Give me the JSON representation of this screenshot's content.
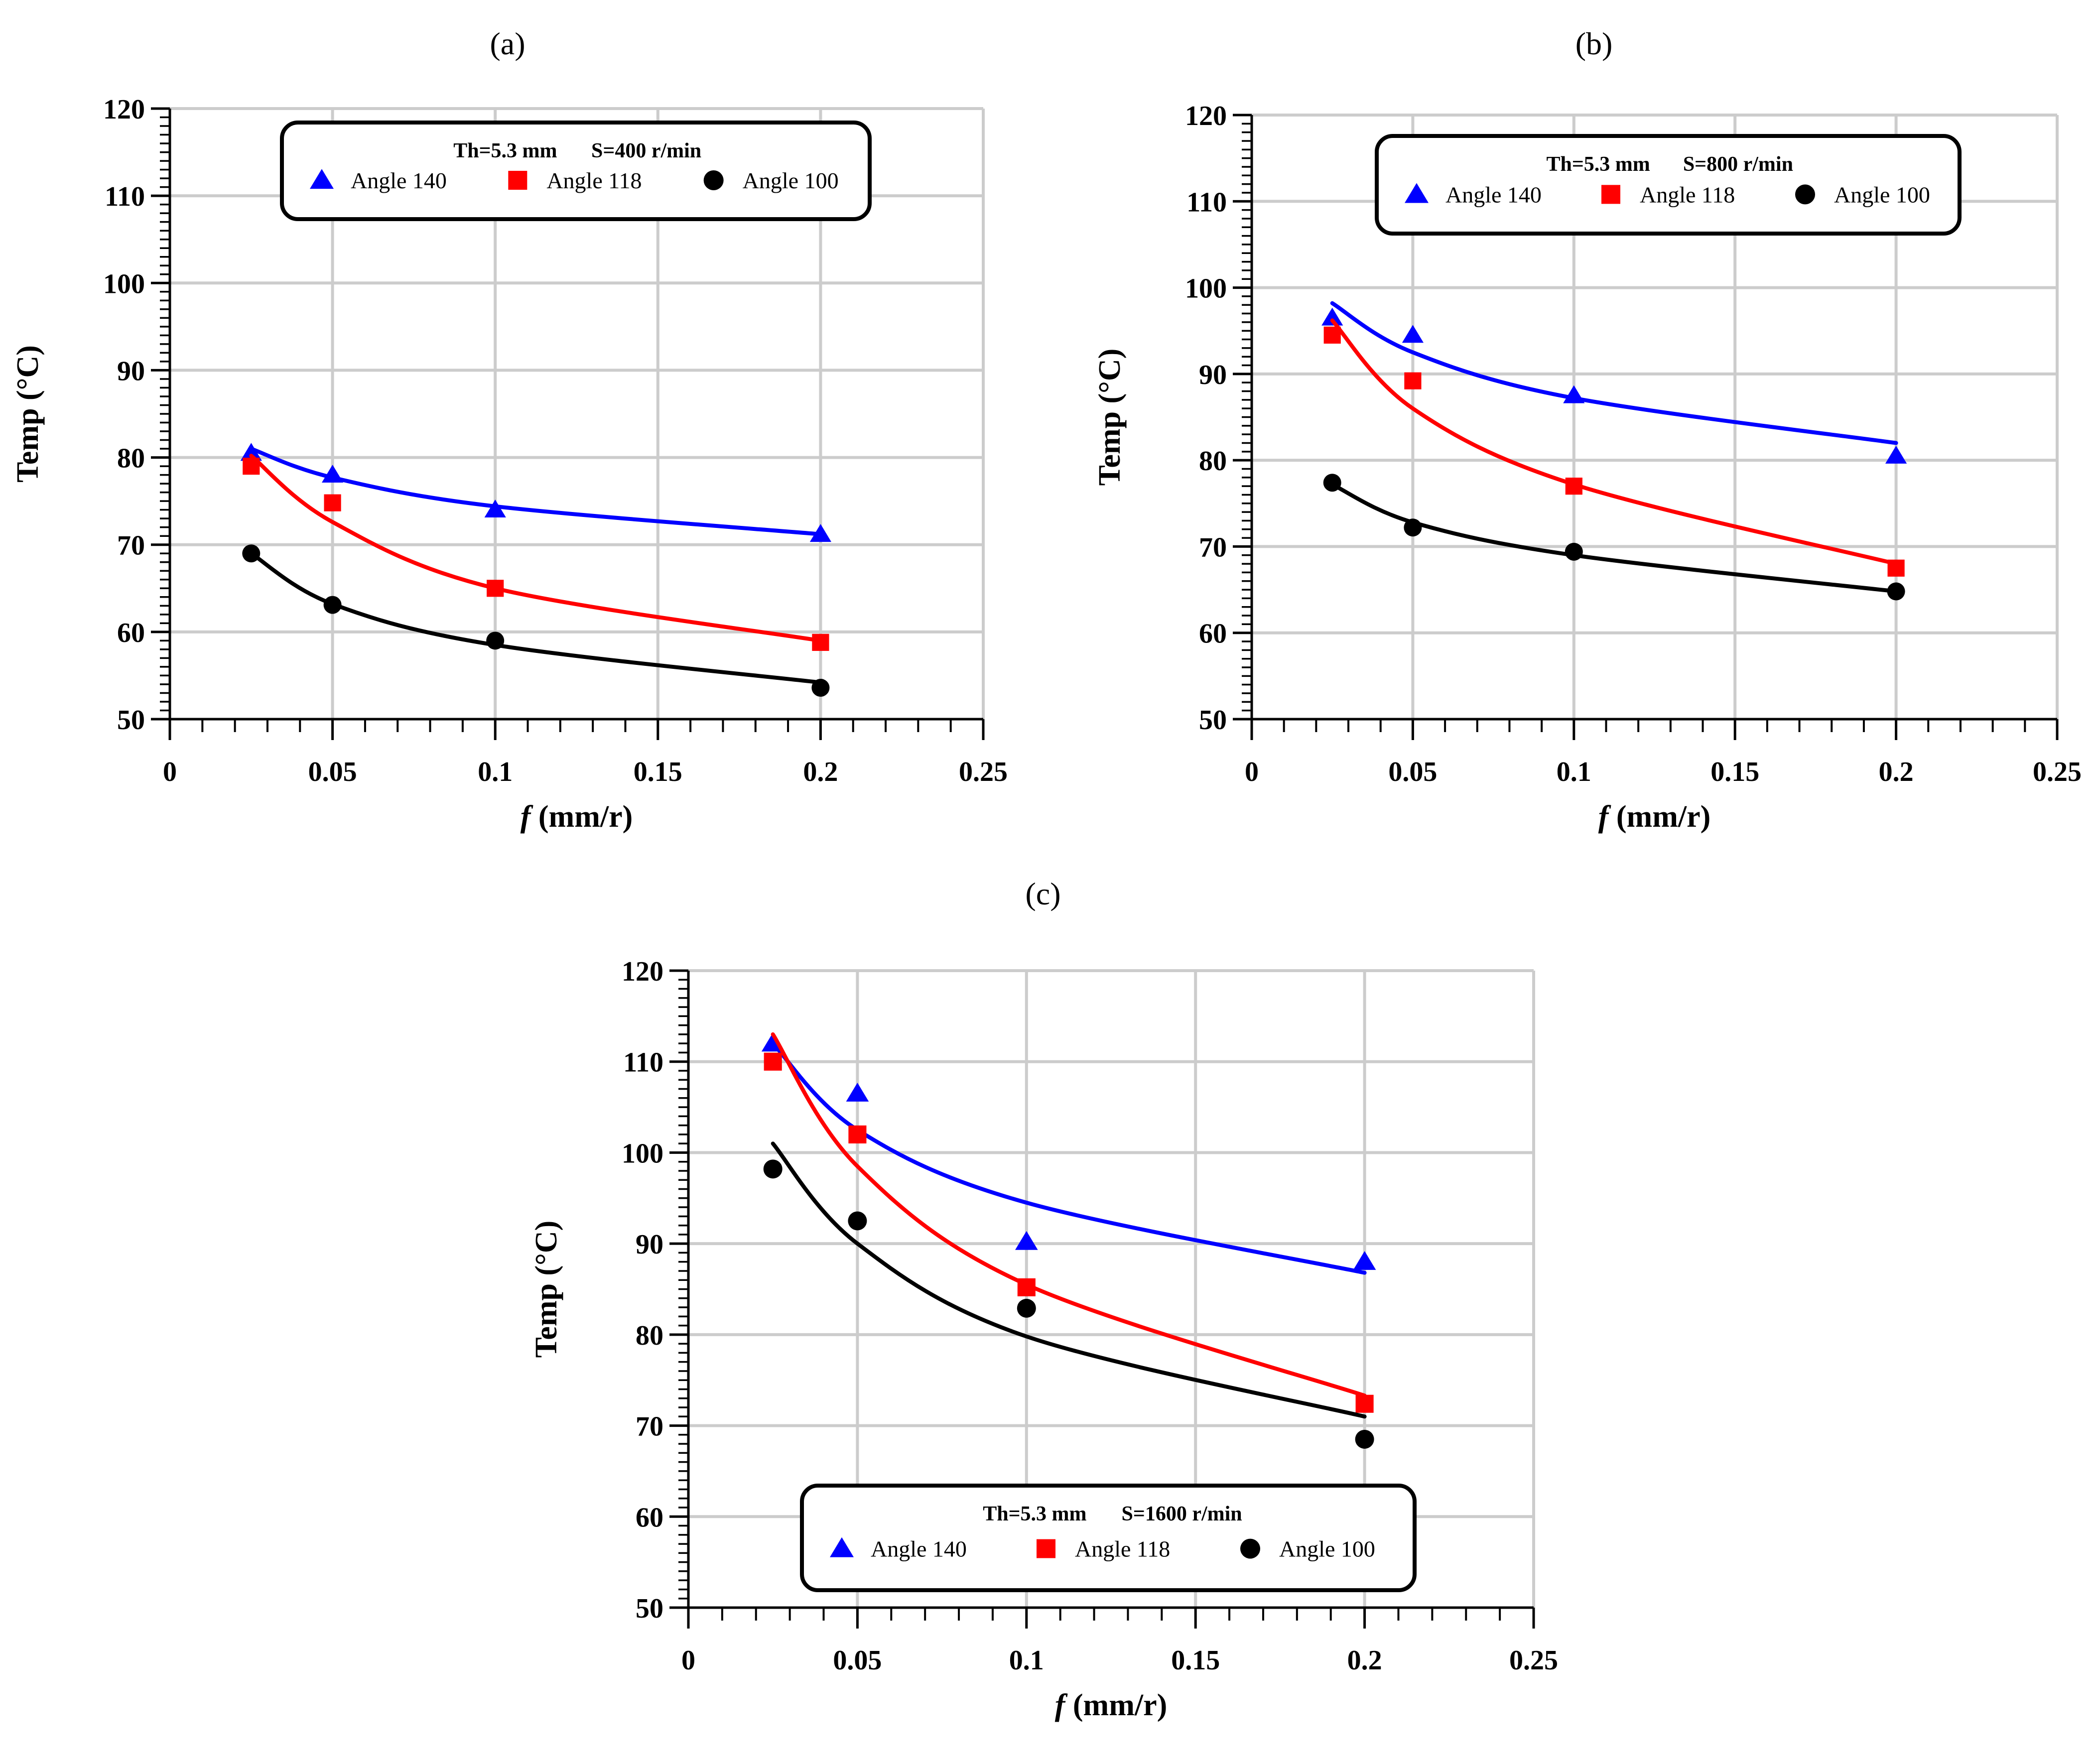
{
  "chart_data": [
    {
      "type": "scatter",
      "panel_label": "(a)",
      "legend_header": {
        "thickness": "Th=5.3 mm",
        "speed": "S=400 r/min"
      },
      "xlabel_var": "f",
      "xlabel_unit": " (mm/r)",
      "ylabel": "Temp (°C)",
      "xlim": [
        0,
        0.25
      ],
      "ylim": [
        50,
        120
      ],
      "x_ticks": [
        "0",
        "0.05",
        "0.1",
        "0.15",
        "0.2",
        "0.25"
      ],
      "y_ticks": [
        "50",
        "60",
        "70",
        "80",
        "90",
        "100",
        "110",
        "120"
      ],
      "x": [
        0.025,
        0.05,
        0.1,
        0.2
      ],
      "series": [
        {
          "name": "Angle 140",
          "marker": "triangle",
          "color": "#0000ff",
          "values": [
            80.5,
            78.0,
            74.0,
            71.2
          ],
          "fit": [
            81.0,
            77.7,
            74.4,
            71.2
          ]
        },
        {
          "name": "Angle 118",
          "marker": "square",
          "color": "#ff0000",
          "values": [
            79.0,
            74.8,
            65.0,
            58.8
          ],
          "fit": [
            80.2,
            72.6,
            65.0,
            59.0
          ]
        },
        {
          "name": "Angle 100",
          "marker": "circle",
          "color": "#000000",
          "values": [
            69.0,
            63.1,
            59.0,
            53.6
          ],
          "fit": [
            69.0,
            63.2,
            58.5,
            54.2
          ]
        }
      ]
    },
    {
      "type": "scatter",
      "panel_label": "(b)",
      "legend_header": {
        "thickness": "Th=5.3 mm",
        "speed": "S=800 r/min"
      },
      "xlabel_var": "f",
      "xlabel_unit": " (mm/r)",
      "ylabel": "Temp (°C)",
      "xlim": [
        0,
        0.25
      ],
      "ylim": [
        50,
        120
      ],
      "x_ticks": [
        "0",
        "0.05",
        "0.1",
        "0.15",
        "0.2",
        "0.25"
      ],
      "y_ticks": [
        "50",
        "60",
        "70",
        "80",
        "90",
        "100",
        "110",
        "120"
      ],
      "x": [
        0.025,
        0.05,
        0.1,
        0.2
      ],
      "series": [
        {
          "name": "Angle 140",
          "marker": "triangle",
          "color": "#0000ff",
          "values": [
            96.5,
            94.5,
            87.5,
            80.5
          ],
          "fit": [
            98.2,
            92.5,
            87.2,
            82.0
          ]
        },
        {
          "name": "Angle 118",
          "marker": "square",
          "color": "#ff0000",
          "values": [
            94.5,
            89.2,
            77.0,
            67.5
          ],
          "fit": [
            96.2,
            86.0,
            77.2,
            68.0
          ]
        },
        {
          "name": "Angle 100",
          "marker": "circle",
          "color": "#000000",
          "values": [
            77.4,
            72.2,
            69.4,
            64.8
          ],
          "fit": [
            77.2,
            72.8,
            69.0,
            64.8
          ]
        }
      ]
    },
    {
      "type": "scatter",
      "panel_label": "(c)",
      "legend_header": {
        "thickness": "Th=5.3 mm",
        "speed": "S=1600 r/min"
      },
      "xlabel_var": "f",
      "xlabel_unit": " (mm/r)",
      "ylabel": "Temp (°C)",
      "xlim": [
        0,
        0.25
      ],
      "ylim": [
        50,
        120
      ],
      "x_ticks": [
        "0",
        "0.05",
        "0.1",
        "0.15",
        "0.2",
        "0.25"
      ],
      "y_ticks": [
        "50",
        "60",
        "70",
        "80",
        "90",
        "100",
        "110",
        "120"
      ],
      "x": [
        0.025,
        0.05,
        0.1,
        0.2
      ],
      "series": [
        {
          "name": "Angle 140",
          "marker": "triangle",
          "color": "#0000ff",
          "values": [
            112.0,
            106.5,
            90.2,
            88.0
          ],
          "fit": [
            112.0,
            102.5,
            94.5,
            86.8
          ]
        },
        {
          "name": "Angle 118",
          "marker": "square",
          "color": "#ff0000",
          "values": [
            110.0,
            102.0,
            85.2,
            72.4
          ],
          "fit": [
            113.0,
            98.5,
            85.5,
            73.3
          ]
        },
        {
          "name": "Angle 100",
          "marker": "circle",
          "color": "#000000",
          "values": [
            98.2,
            92.5,
            82.9,
            68.5
          ],
          "fit": [
            101.0,
            90.0,
            79.8,
            71.0
          ]
        }
      ]
    }
  ]
}
